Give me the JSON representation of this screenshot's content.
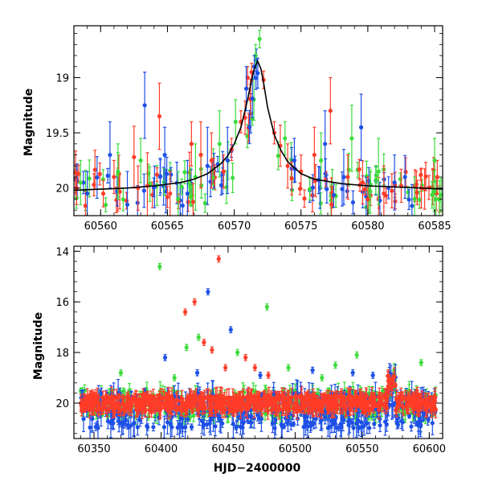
{
  "chart_data": [
    {
      "type": "scatter",
      "panel": "top",
      "xlabel": "",
      "ylabel": "Magnitude",
      "xlim": [
        60558,
        60585.6
      ],
      "ylim": [
        20.25,
        18.53
      ],
      "y_inverted": true,
      "xticks": [
        60560,
        60565,
        60570,
        60575,
        60580,
        60585
      ],
      "xtick_labels": [
        "60560",
        "60565",
        "60570",
        "60575",
        "60580",
        "60585"
      ],
      "yticks": [
        19,
        19.5,
        20
      ],
      "ytick_labels": [
        "19",
        "19.5",
        "20"
      ],
      "model_curve": {
        "description_shape": "single-lens microlensing fit",
        "baseline_mag": 20.02,
        "peak_time": 60571.75,
        "peak_mag": 18.85,
        "x": [
          60558,
          60560,
          60562,
          60564,
          60566,
          60567,
          60568,
          60569,
          60569.5,
          60570,
          60570.5,
          60571,
          60571.3,
          60571.5,
          60571.75,
          60572,
          60572.2,
          60572.5,
          60573,
          60573.5,
          60574,
          60575,
          60576,
          60578,
          60580,
          60582,
          60584,
          60585.6
        ],
        "y": [
          20.02,
          20.01,
          20.0,
          19.98,
          19.95,
          19.92,
          19.87,
          19.78,
          19.71,
          19.6,
          19.45,
          19.2,
          19.02,
          18.92,
          18.85,
          18.92,
          19.05,
          19.27,
          19.52,
          19.66,
          19.76,
          19.87,
          19.92,
          19.96,
          19.98,
          19.99,
          20.0,
          20.01
        ]
      },
      "series": [
        {
          "color": "#ff3c28",
          "points": [
            [
              60558.2,
              20.0,
              0.15
            ],
            [
              60559.5,
              19.97,
              0.1
            ],
            [
              60560.2,
              20.05,
              0.12
            ],
            [
              60561.0,
              19.9,
              0.15
            ],
            [
              60562.5,
              19.72,
              0.28
            ],
            [
              60562.8,
              20.0,
              0.2
            ],
            [
              60563.5,
              19.98,
              0.3
            ],
            [
              60564.4,
              19.35,
              0.3
            ],
            [
              60565.2,
              20.05,
              0.2
            ],
            [
              60566.8,
              19.6,
              0.2
            ],
            [
              60567.5,
              19.7,
              0.3
            ],
            [
              60568.3,
              19.75,
              0.25
            ],
            [
              60569.2,
              19.85,
              0.15
            ],
            [
              60569.8,
              19.65,
              0.1
            ],
            [
              60570.5,
              19.4,
              0.1
            ],
            [
              60571.0,
              19.0,
              0.1
            ],
            [
              60571.3,
              18.95,
              0.08
            ],
            [
              60572.2,
              19.02,
              0.08
            ],
            [
              60573.0,
              19.5,
              0.1
            ],
            [
              60574.0,
              19.8,
              0.2
            ],
            [
              60575.0,
              19.85,
              0.15
            ],
            [
              60576.0,
              19.7,
              0.25
            ],
            [
              60577.2,
              19.3,
              0.3
            ],
            [
              60578.5,
              19.9,
              0.2
            ],
            [
              60580.0,
              20.1,
              0.2
            ],
            [
              60581.2,
              20.05,
              0.25
            ],
            [
              60582.5,
              19.98,
              0.15
            ],
            [
              60584.0,
              20.0,
              0.18
            ],
            [
              60585.2,
              19.9,
              0.15
            ]
          ]
        },
        {
          "color": "#3cdc3c",
          "points": [
            [
              60558.5,
              19.95,
              0.2
            ],
            [
              60561.3,
              19.85,
              0.25
            ],
            [
              60563.0,
              19.75,
              0.2
            ],
            [
              60565.8,
              20.1,
              0.25
            ],
            [
              60567.1,
              19.9,
              0.3
            ],
            [
              60568.9,
              19.6,
              0.3
            ],
            [
              60570.1,
              19.4,
              0.2
            ],
            [
              60571.6,
              18.8,
              0.1
            ],
            [
              60571.9,
              18.65,
              0.08
            ],
            [
              60573.8,
              19.55,
              0.15
            ],
            [
              60576.5,
              19.75,
              0.25
            ],
            [
              60578.8,
              19.55,
              0.3
            ],
            [
              60580.8,
              19.85,
              0.3
            ],
            [
              60583.5,
              20.1,
              0.2
            ],
            [
              60585.0,
              19.75,
              0.2
            ]
          ]
        },
        {
          "color": "#1e50e6",
          "points": [
            [
              60559.0,
              20.05,
              0.2
            ],
            [
              60560.7,
              19.7,
              0.3
            ],
            [
              60562.0,
              20.15,
              0.3
            ],
            [
              60563.3,
              19.25,
              0.3
            ],
            [
              60564.8,
              19.7,
              0.25
            ],
            [
              60566.5,
              20.05,
              0.3
            ],
            [
              60568.0,
              19.8,
              0.35
            ],
            [
              60569.5,
              19.75,
              0.3
            ],
            [
              60570.9,
              19.1,
              0.2
            ],
            [
              60571.5,
              18.9,
              0.1
            ],
            [
              60574.5,
              19.75,
              0.2
            ],
            [
              60576.8,
              19.6,
              0.3
            ],
            [
              60578.2,
              19.9,
              0.25
            ],
            [
              60579.5,
              19.45,
              0.3
            ],
            [
              60582.0,
              19.95,
              0.25
            ]
          ]
        }
      ]
    },
    {
      "type": "scatter",
      "panel": "bottom",
      "xlabel": "HJD−2400000",
      "ylabel": "Magnitude",
      "xlim": [
        60335,
        60610
      ],
      "ylim": [
        21.4,
        13.8
      ],
      "y_inverted": true,
      "xticks": [
        60350,
        60400,
        60450,
        60500,
        60550,
        60600
      ],
      "xtick_labels": [
        "60350",
        "60400",
        "60450",
        "60500",
        "60550",
        "60600"
      ],
      "yticks": [
        14,
        16,
        18,
        20
      ],
      "ytick_labels": [
        "14",
        "16",
        "18",
        "20"
      ],
      "baseline_mag": 20.0,
      "outliers": {
        "red": [
          [
            60443,
            14.3
          ],
          [
            60418,
            16.4
          ],
          [
            60425,
            16.0
          ],
          [
            60432,
            17.6
          ],
          [
            60438,
            17.9
          ],
          [
            60448,
            18.6
          ],
          [
            60463,
            18.2
          ],
          [
            60470,
            18.6
          ],
          [
            60480,
            18.9
          ],
          [
            60573,
            19.0
          ]
        ],
        "green": [
          [
            60399,
            14.6
          ],
          [
            60479,
            16.2
          ],
          [
            60419,
            17.8
          ],
          [
            60428,
            17.4
          ],
          [
            60457,
            18.0
          ],
          [
            60495,
            18.6
          ],
          [
            60530,
            18.5
          ],
          [
            60546,
            18.1
          ],
          [
            60594,
            18.4
          ],
          [
            60410,
            19.0
          ],
          [
            60370,
            18.8
          ],
          [
            60520,
            19.0
          ]
        ],
        "blue": [
          [
            60435,
            15.6
          ],
          [
            60452,
            17.1
          ],
          [
            60403,
            18.2
          ],
          [
            60427,
            18.8
          ],
          [
            60474,
            18.9
          ],
          [
            60513,
            18.7
          ],
          [
            60543,
            18.8
          ],
          [
            60558,
            18.9
          ]
        ]
      },
      "series": [
        {
          "color": "#3cdc3c",
          "mag_range": [
            19.5,
            20.6
          ]
        },
        {
          "color": "#1e50e6",
          "mag_range": [
            19.6,
            21.0
          ]
        },
        {
          "color": "#ff3c28",
          "mag_range": [
            19.7,
            20.3
          ]
        }
      ]
    }
  ]
}
